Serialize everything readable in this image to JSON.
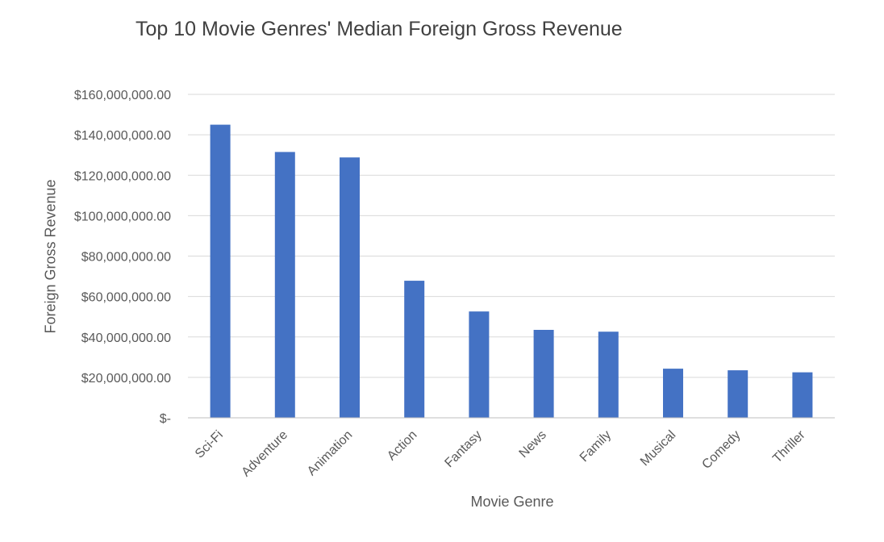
{
  "chart_data": {
    "type": "bar",
    "title": "Top 10 Movie Genres' Median Foreign Gross Revenue",
    "xlabel": "Movie Genre",
    "ylabel": "Foreign Gross Revenue",
    "categories": [
      "Sci-Fi",
      "Adventure",
      "Animation",
      "Action",
      "Fantasy",
      "News",
      "Family",
      "Musical",
      "Comedy",
      "Thriller"
    ],
    "values": [
      145000000,
      131500000,
      128800000,
      67800000,
      52600000,
      43500000,
      42600000,
      24300000,
      23500000,
      22500000
    ],
    "ylim": [
      0,
      160000000
    ],
    "yticks": [
      0,
      20000000,
      40000000,
      60000000,
      80000000,
      100000000,
      120000000,
      140000000,
      160000000
    ],
    "ytick_labels": [
      "$-",
      "$20,000,000.00",
      "$40,000,000.00",
      "$60,000,000.00",
      "$80,000,000.00",
      "$100,000,000.00",
      "$120,000,000.00",
      "$140,000,000.00",
      "$160,000,000.00"
    ],
    "grid": true,
    "legend": "none",
    "bar_color": "#4472C4",
    "grid_color": "#D9D9D9"
  }
}
